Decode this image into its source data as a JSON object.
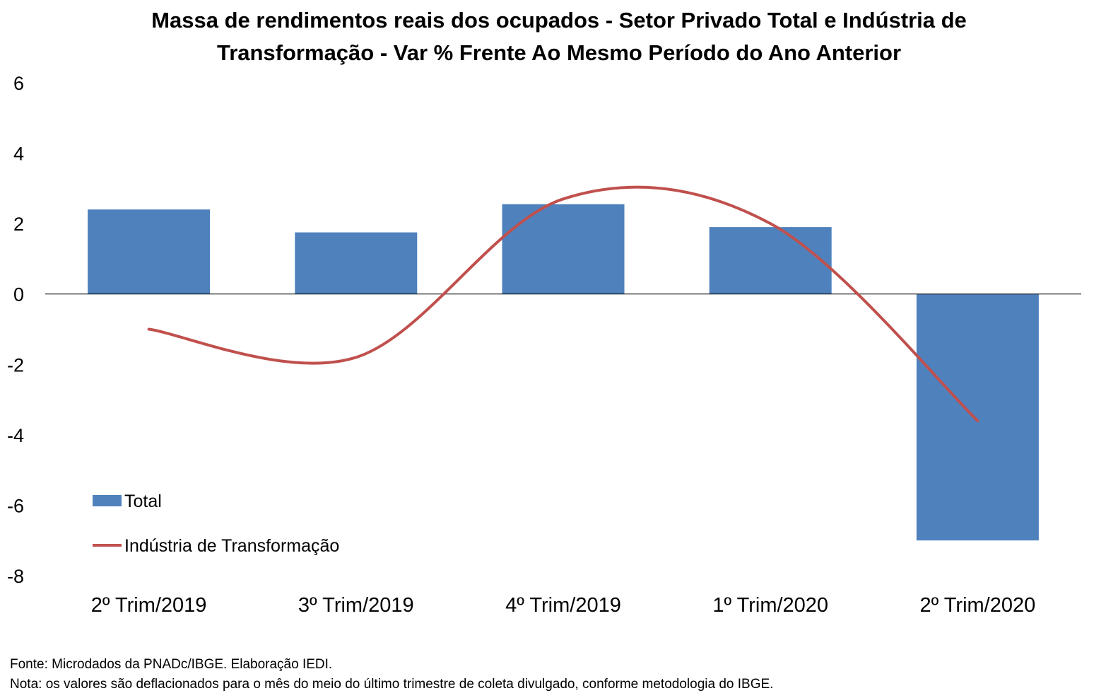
{
  "chart_data": {
    "type": "bar",
    "title_lines": [
      "Massa de rendimentos reais dos ocupados - Setor Privado Total e Indústria de",
      "Transformação - Var % Frente Ao Mesmo Período do Ano Anterior"
    ],
    "categories": [
      "2º Trim/2019",
      "3º Trim/2019",
      "4º Trim/2019",
      "1º Trim/2020",
      "2º Trim/2020"
    ],
    "series": [
      {
        "name": "Total",
        "type": "bar",
        "color": "#4F81BD",
        "values": [
          2.4,
          1.75,
          2.55,
          1.9,
          -7.0
        ]
      },
      {
        "name": "Indústria de Transformação",
        "type": "line",
        "smooth": true,
        "color": "#C0504D",
        "values": [
          -1.0,
          -1.8,
          2.7,
          2.0,
          -3.6
        ]
      }
    ],
    "ylim": [
      -8,
      6
    ],
    "yticks": [
      6,
      4,
      2,
      0,
      -2,
      -4,
      -6,
      -8
    ],
    "grid": false,
    "legend_position": "bottom-left"
  },
  "notes": {
    "source": "Fonte: Microdados da PNADc/IBGE. Elaboração IEDI.",
    "note": "Nota: os valores são deflacionados para o mês do meio do último trimestre de coleta divulgado, conforme metodologia do IBGE."
  }
}
